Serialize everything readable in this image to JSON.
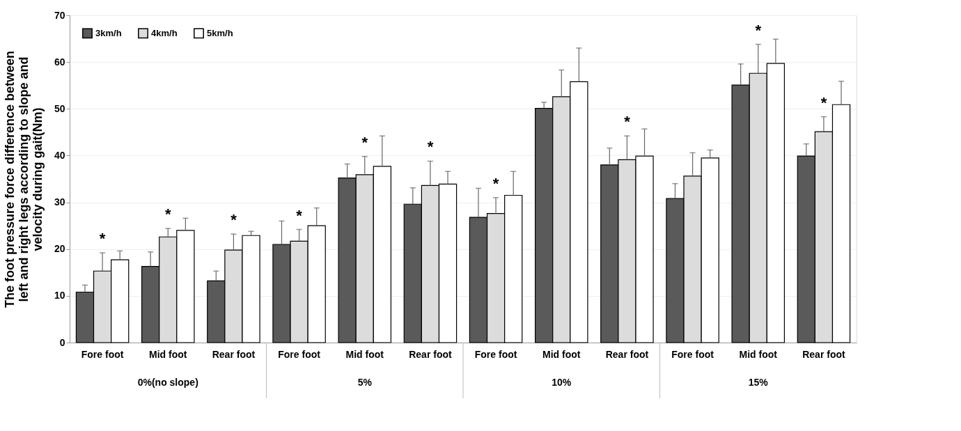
{
  "chart_data": {
    "type": "bar",
    "ylabel": "The foot pressure force difference between left and right legs according to slope and velocity during gait(Nm)",
    "categories": [
      "Fore foot",
      "Mid foot",
      "Rear foot",
      "Fore foot",
      "Mid foot",
      "Rear foot",
      "Fore foot",
      "Mid foot",
      "Rear foot",
      "Fore foot",
      "Mid foot",
      "Rear foot"
    ],
    "series": [
      {
        "name": "3km/h",
        "color": "#5a5a5a",
        "values": [
          10.8,
          16.3,
          13.2,
          21.0,
          35.2,
          29.6,
          26.8,
          50.1,
          38.0,
          30.8,
          55.1,
          39.9
        ],
        "errors": [
          [
            10.8,
            12.3
          ],
          [
            16.3,
            19.4
          ],
          [
            13.2,
            15.3
          ],
          [
            21.0,
            26.0
          ],
          [
            35.2,
            38.2
          ],
          [
            29.6,
            33.1
          ],
          [
            26.8,
            33.0
          ],
          [
            50.1,
            51.4
          ],
          [
            38.0,
            41.6
          ],
          [
            30.8,
            34.0
          ],
          [
            55.1,
            59.6
          ],
          [
            39.9,
            42.5
          ]
        ]
      },
      {
        "name": "4km/h",
        "color": "#dcdcdc",
        "values": [
          15.3,
          22.6,
          19.8,
          21.7,
          35.9,
          33.6,
          27.6,
          52.6,
          39.1,
          35.6,
          57.6,
          45.1
        ],
        "value_labels": [
          "*",
          "*",
          "*",
          "*",
          "*",
          "*",
          "*",
          null,
          "*",
          null,
          "*",
          "*"
        ],
        "errors": [
          [
            15.3,
            19.2
          ],
          [
            22.6,
            24.4
          ],
          [
            19.8,
            23.2
          ],
          [
            21.7,
            24.2
          ],
          [
            35.9,
            39.8
          ],
          [
            33.6,
            38.8
          ],
          [
            27.6,
            31.0
          ],
          [
            52.6,
            58.3
          ],
          [
            39.1,
            44.2
          ],
          [
            35.6,
            40.6
          ],
          [
            57.6,
            63.8
          ],
          [
            45.1,
            48.3
          ]
        ]
      },
      {
        "name": "5km/h",
        "color": "#ffffff",
        "values": [
          17.7,
          24.0,
          22.9,
          25.0,
          37.7,
          33.9,
          31.5,
          55.8,
          39.9,
          39.5,
          59.7,
          50.9
        ],
        "errors": [
          [
            17.7,
            19.6
          ],
          [
            24.0,
            26.6
          ],
          [
            22.9,
            23.8
          ],
          [
            25.0,
            28.8
          ],
          [
            37.7,
            44.2
          ],
          [
            33.9,
            36.6
          ],
          [
            31.5,
            36.6
          ],
          [
            55.8,
            63.0
          ],
          [
            39.9,
            45.7
          ],
          [
            39.5,
            41.2
          ],
          [
            59.7,
            64.9
          ],
          [
            50.9,
            55.9
          ]
        ]
      }
    ],
    "annotations": [
      "0%(no slope)",
      "5%",
      "10%",
      "15%"
    ],
    "ylim": [
      0,
      70
    ],
    "yticks": [
      0,
      10,
      20,
      30,
      40,
      50,
      60,
      70
    ],
    "grid": "y",
    "legend": "top left"
  }
}
